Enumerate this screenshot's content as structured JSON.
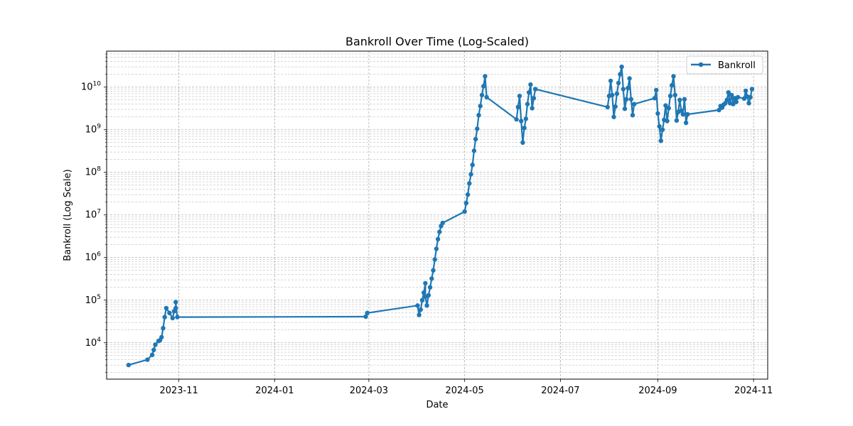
{
  "chart_data": {
    "type": "line",
    "title": "Bankroll Over Time (Log-Scaled)",
    "xlabel": "Date",
    "ylabel": "Bankroll (Log Scale)",
    "xlim": [
      "2023-09-16",
      "2024-11-10"
    ],
    "ylim": [
      1400,
      70000000000
    ],
    "yscale": "log",
    "grid": true,
    "legend_position": "top-right",
    "x_ticks": [
      {
        "date": "2023-11-01",
        "label": "2023-11"
      },
      {
        "date": "2024-01-01",
        "label": "2024-01"
      },
      {
        "date": "2024-03-01",
        "label": "2024-03"
      },
      {
        "date": "2024-05-01",
        "label": "2024-05"
      },
      {
        "date": "2024-07-01",
        "label": "2024-07"
      },
      {
        "date": "2024-09-01",
        "label": "2024-09"
      },
      {
        "date": "2024-11-01",
        "label": "2024-11"
      }
    ],
    "y_ticks": [
      {
        "value": 10000,
        "base": "10",
        "exp": "4"
      },
      {
        "value": 100000,
        "base": "10",
        "exp": "5"
      },
      {
        "value": 1000000,
        "base": "10",
        "exp": "6"
      },
      {
        "value": 10000000,
        "base": "10",
        "exp": "7"
      },
      {
        "value": 100000000,
        "base": "10",
        "exp": "8"
      },
      {
        "value": 1000000000,
        "base": "10",
        "exp": "9"
      },
      {
        "value": 10000000000,
        "base": "10",
        "exp": "10"
      }
    ],
    "series": [
      {
        "name": "Bankroll",
        "color": "#1f77b4",
        "points": [
          [
            "2023-09-30",
            3000
          ],
          [
            "2023-10-12",
            4000
          ],
          [
            "2023-10-15",
            5200
          ],
          [
            "2023-10-16",
            6800
          ],
          [
            "2023-10-17",
            9000
          ],
          [
            "2023-10-19",
            11000
          ],
          [
            "2023-10-20",
            11500
          ],
          [
            "2023-10-21",
            13500
          ],
          [
            "2023-10-22",
            22000
          ],
          [
            "2023-10-23",
            40000
          ],
          [
            "2023-10-24",
            65000
          ],
          [
            "2023-10-26",
            50000
          ],
          [
            "2023-10-28",
            38000
          ],
          [
            "2023-10-29",
            55000
          ],
          [
            "2023-10-30",
            65000
          ],
          [
            "2023-10-30",
            90000
          ],
          [
            "2023-10-31",
            40000
          ],
          [
            "2024-02-28",
            41000
          ],
          [
            "2024-02-29",
            50000
          ],
          [
            "2024-04-01",
            75000
          ],
          [
            "2024-04-02",
            45000
          ],
          [
            "2024-04-03",
            60000
          ],
          [
            "2024-04-04",
            100000
          ],
          [
            "2024-04-05",
            150000
          ],
          [
            "2024-04-06",
            250000
          ],
          [
            "2024-04-06",
            120000
          ],
          [
            "2024-04-07",
            75000
          ],
          [
            "2024-04-08",
            130000
          ],
          [
            "2024-04-09",
            200000
          ],
          [
            "2024-04-10",
            320000
          ],
          [
            "2024-04-11",
            500000
          ],
          [
            "2024-04-12",
            900000
          ],
          [
            "2024-04-13",
            1600000
          ],
          [
            "2024-04-14",
            2700000
          ],
          [
            "2024-04-15",
            4000000
          ],
          [
            "2024-04-16",
            5500000
          ],
          [
            "2024-04-17",
            6500000
          ],
          [
            "2024-05-01",
            12000000
          ],
          [
            "2024-05-02",
            19000000
          ],
          [
            "2024-05-03",
            30000000
          ],
          [
            "2024-05-04",
            55000000
          ],
          [
            "2024-05-05",
            90000000
          ],
          [
            "2024-05-06",
            150000000
          ],
          [
            "2024-05-07",
            320000000
          ],
          [
            "2024-05-08",
            600000000
          ],
          [
            "2024-05-09",
            1050000000
          ],
          [
            "2024-05-10",
            2200000000
          ],
          [
            "2024-05-11",
            3600000000
          ],
          [
            "2024-05-12",
            6500000000
          ],
          [
            "2024-05-13",
            10500000000
          ],
          [
            "2024-05-14",
            18000000000
          ],
          [
            "2024-05-15",
            5800000000
          ],
          [
            "2024-06-03",
            1750000000
          ],
          [
            "2024-06-04",
            3400000000
          ],
          [
            "2024-06-05",
            6200000000
          ],
          [
            "2024-06-06",
            1600000000
          ],
          [
            "2024-06-07",
            500000000
          ],
          [
            "2024-06-08",
            1100000000
          ],
          [
            "2024-06-09",
            1800000000
          ],
          [
            "2024-06-10",
            4000000000
          ],
          [
            "2024-06-11",
            7500000000
          ],
          [
            "2024-06-12",
            11500000000
          ],
          [
            "2024-06-13",
            3200000000
          ],
          [
            "2024-06-14",
            5500000000
          ],
          [
            "2024-06-15",
            9000000000
          ],
          [
            "2024-07-31",
            3400000000
          ],
          [
            "2024-08-01",
            6200000000
          ],
          [
            "2024-08-02",
            14000000000
          ],
          [
            "2024-08-03",
            6500000000
          ],
          [
            "2024-08-04",
            2000000000
          ],
          [
            "2024-08-05",
            3500000000
          ],
          [
            "2024-08-06",
            7000000000
          ],
          [
            "2024-08-07",
            12500000000
          ],
          [
            "2024-08-08",
            20000000000
          ],
          [
            "2024-08-09",
            30000000000
          ],
          [
            "2024-08-10",
            9000000000
          ],
          [
            "2024-08-11",
            3100000000
          ],
          [
            "2024-08-12",
            5200000000
          ],
          [
            "2024-08-13",
            9500000000
          ],
          [
            "2024-08-14",
            16000000000
          ],
          [
            "2024-08-15",
            5200000000
          ],
          [
            "2024-08-16",
            2200000000
          ],
          [
            "2024-08-17",
            4000000000
          ],
          [
            "2024-08-30",
            5500000000
          ],
          [
            "2024-08-31",
            8500000000
          ],
          [
            "2024-09-01",
            2400000000
          ],
          [
            "2024-09-02",
            1200000000
          ],
          [
            "2024-09-03",
            550000000
          ],
          [
            "2024-09-04",
            1000000000
          ],
          [
            "2024-09-05",
            1700000000
          ],
          [
            "2024-09-06",
            3700000000
          ],
          [
            "2024-09-07",
            1600000000
          ],
          [
            "2024-09-08",
            3200000000
          ],
          [
            "2024-09-09",
            6200000000
          ],
          [
            "2024-09-10",
            11000000000
          ],
          [
            "2024-09-11",
            18000000000
          ],
          [
            "2024-09-12",
            6500000000
          ],
          [
            "2024-09-13",
            1650000000
          ],
          [
            "2024-09-14",
            2600000000
          ],
          [
            "2024-09-15",
            5000000000
          ],
          [
            "2024-09-16",
            2800000000
          ],
          [
            "2024-09-17",
            2300000000
          ],
          [
            "2024-09-18",
            5200000000
          ],
          [
            "2024-09-19",
            1450000000
          ],
          [
            "2024-09-20",
            2300000000
          ],
          [
            "2024-10-10",
            2900000000
          ],
          [
            "2024-10-11",
            3600000000
          ],
          [
            "2024-10-12",
            3300000000
          ],
          [
            "2024-10-13",
            3900000000
          ],
          [
            "2024-10-14",
            4200000000
          ],
          [
            "2024-10-15",
            5000000000
          ],
          [
            "2024-10-16",
            7500000000
          ],
          [
            "2024-10-17",
            4200000000
          ],
          [
            "2024-10-18",
            6500000000
          ],
          [
            "2024-10-19",
            4000000000
          ],
          [
            "2024-10-20",
            5500000000
          ],
          [
            "2024-10-21",
            4500000000
          ],
          [
            "2024-10-22",
            5800000000
          ],
          [
            "2024-10-26",
            5400000000
          ],
          [
            "2024-10-27",
            8200000000
          ],
          [
            "2024-10-28",
            6000000000
          ],
          [
            "2024-10-29",
            4200000000
          ],
          [
            "2024-10-30",
            5800000000
          ],
          [
            "2024-10-31",
            9000000000
          ]
        ]
      }
    ]
  }
}
